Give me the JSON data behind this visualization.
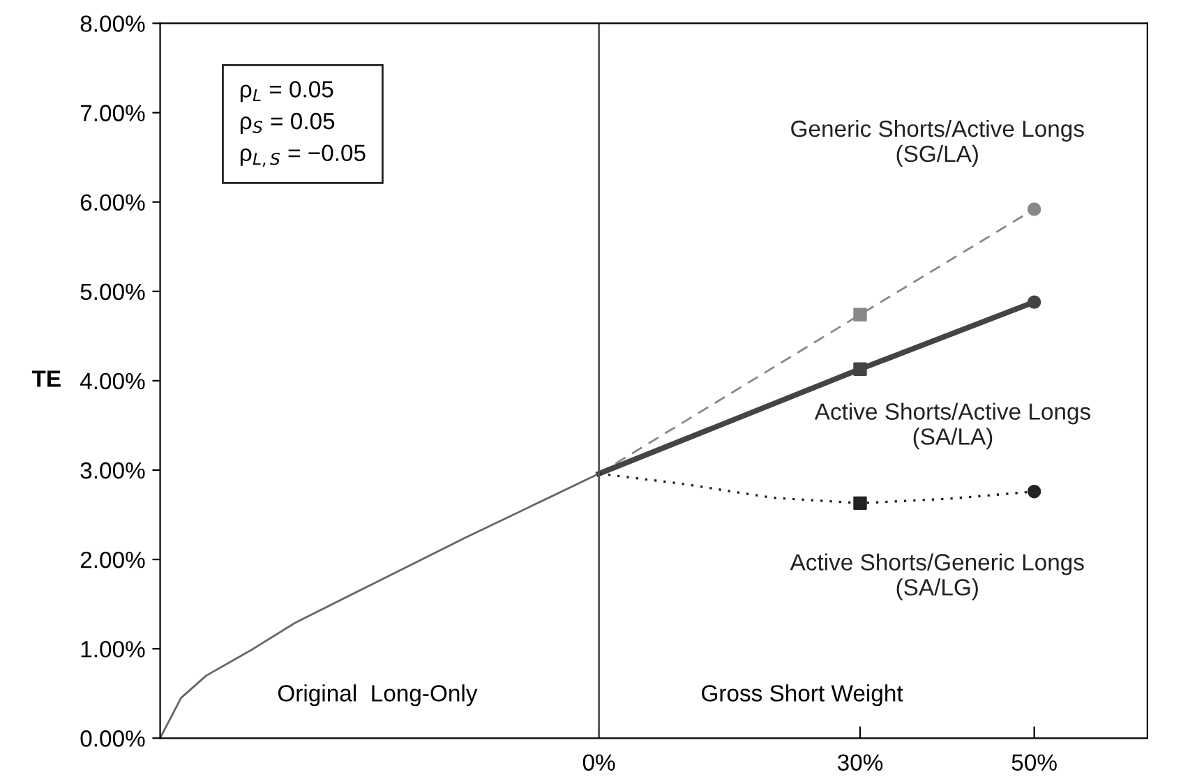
{
  "chart_data": {
    "type": "line",
    "ylabel": "TE",
    "xlim": [
      -50.4,
      63
    ],
    "xticks": [
      {
        "value": 0,
        "label": "0%"
      },
      {
        "value": 30,
        "label": "30%"
      },
      {
        "value": 50,
        "label": "50%"
      }
    ],
    "ylim": [
      0,
      8
    ],
    "yticks": [
      {
        "value": 0,
        "label": "0.00%"
      },
      {
        "value": 1,
        "label": "1.00%"
      },
      {
        "value": 2,
        "label": "2.00%"
      },
      {
        "value": 3,
        "label": "3.00%"
      },
      {
        "value": 4,
        "label": "4.00%"
      },
      {
        "value": 5,
        "label": "5.00%"
      },
      {
        "value": 6,
        "label": "6.00%"
      },
      {
        "value": 7,
        "label": "7.00%"
      },
      {
        "value": 8,
        "label": "8.00%"
      }
    ],
    "grid": false,
    "series": [
      {
        "color": "#666666",
        "line_style": "solid",
        "x": [
          -50.4,
          -48.0,
          -45.1,
          -39.7,
          -34.9,
          -25.9,
          -15.2,
          0
        ],
        "values": [
          0,
          0.45,
          0.7,
          1.0,
          1.29,
          1.73,
          2.25,
          2.96
        ]
      },
      {
        "name": "Generic Shorts/Active Longs\n(SG/LA)",
        "color": "#888888",
        "line_style": "dashed",
        "x": [
          0,
          30,
          50
        ],
        "values": [
          2.96,
          4.74,
          5.92
        ]
      },
      {
        "name": "Active Shorts/Active Longs\n(SA/LA)",
        "color": "#444444",
        "line_style": "solid",
        "x": [
          0,
          30,
          50
        ],
        "values": [
          2.96,
          4.13,
          4.88
        ]
      },
      {
        "name": "Active Shorts/Generic Longs\n(SA/LG)",
        "color": "#222222",
        "line_style": "dotted",
        "x": [
          0,
          9.3,
          20,
          30,
          40.3,
          50
        ],
        "values": [
          2.96,
          2.85,
          2.69,
          2.63,
          2.68,
          2.76
        ]
      },
      {
        "type": "scatter",
        "marker": "square",
        "x": [
          30,
          30,
          30
        ],
        "values": [
          4.74,
          4.13,
          2.63
        ],
        "colors": [
          "#888888",
          "#444444",
          "#222222"
        ]
      },
      {
        "type": "scatter",
        "marker": "circle",
        "x": [
          50,
          50,
          50
        ],
        "values": [
          5.92,
          4.88,
          2.76
        ],
        "colors": [
          "#888888",
          "#444444",
          "#222222"
        ]
      }
    ],
    "ref_lines": [
      {
        "axis": "x",
        "value": 0,
        "color": "#555555"
      }
    ],
    "annotations": [
      "ρ$_{L}$ = 0.05\nρ$_{S}$ = 0.05\nρ$_{L,S}$ = −0.05",
      "Original  Long-Only",
      "Gross Short Weight"
    ]
  }
}
